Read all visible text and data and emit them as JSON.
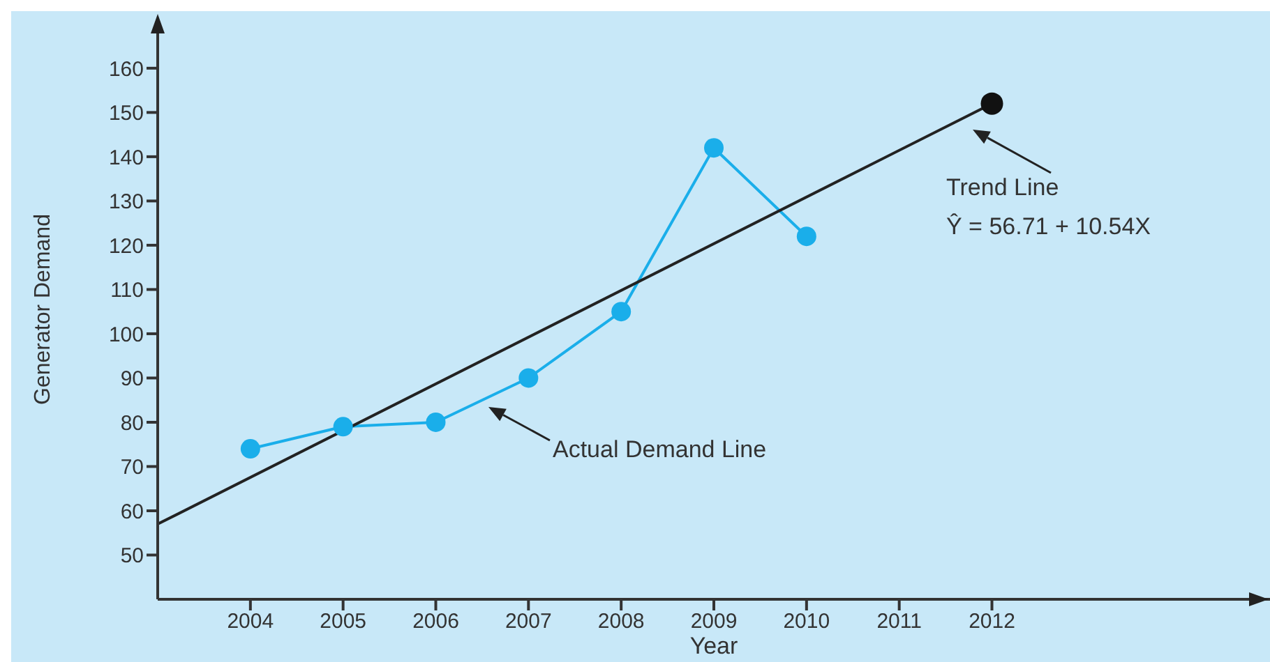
{
  "chart_data": {
    "type": "line",
    "xlabel": "Year",
    "ylabel": "Generator Demand",
    "xlim": [
      2003,
      2015
    ],
    "xticks": [
      2004,
      2005,
      2006,
      2007,
      2008,
      2009,
      2010,
      2011,
      2012
    ],
    "ylim": [
      40,
      171
    ],
    "yticks": [
      50,
      60,
      70,
      80,
      90,
      100,
      110,
      120,
      130,
      140,
      150,
      160
    ],
    "series": [
      {
        "color": "#1aaeea",
        "marker": "circle",
        "x": [
          2004,
          2005,
          2006,
          2007,
          2008,
          2009,
          2010
        ],
        "values": [
          74,
          79,
          80,
          90,
          105,
          142,
          122
        ]
      },
      {
        "color": "#222222",
        "marker": "none",
        "x": [
          2003,
          2012
        ],
        "values": [
          57,
          152
        ]
      },
      {
        "type": "scatter",
        "color": "#111111",
        "marker": "circle",
        "x": [
          2012
        ],
        "values": [
          152
        ]
      }
    ],
    "annotations": [
      "Trend Line",
      "Ŷ = 56.71 + 10.54X",
      "Actual Demand Line"
    ],
    "grid": false
  }
}
